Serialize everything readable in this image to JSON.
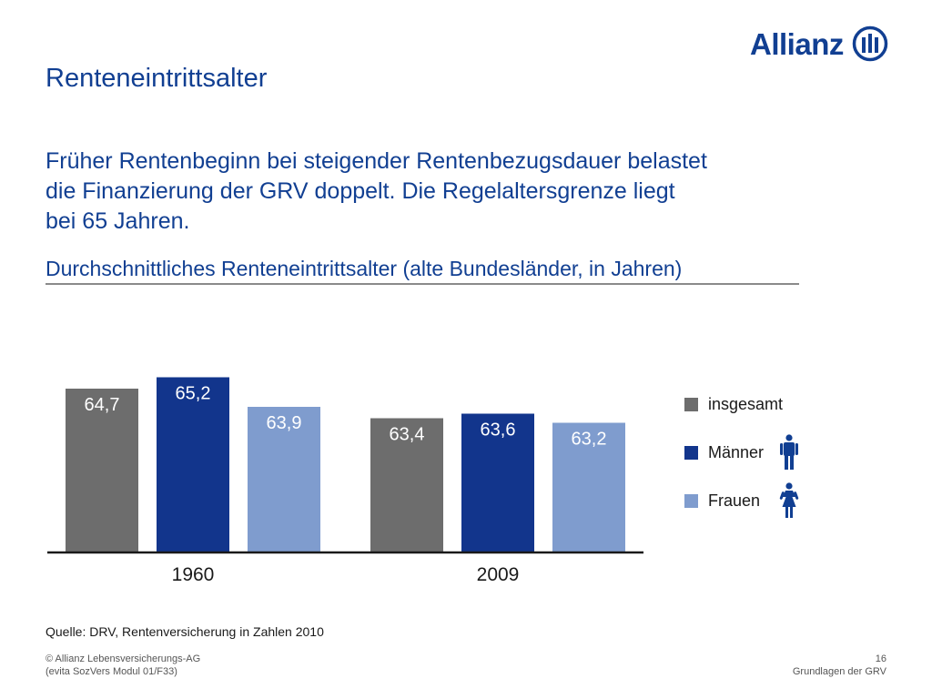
{
  "brand": {
    "name": "Allianz",
    "logo_icon": "allianz-eagle-mark-icon"
  },
  "page": {
    "title": "Renteneintrittsalter",
    "headline_lines": [
      "Früher Rentenbeginn bei steigender Rentenbezugsdauer belastet",
      "die Finanzierung der GRV doppelt. Die Regelaltersgrenze liegt",
      "bei 65 Jahren."
    ],
    "chart_title": "Durchschnittliches Renteneintrittsalter (alte Bundesländer, in Jahren)"
  },
  "chart_data": {
    "type": "bar",
    "title": "Durchschnittliches Renteneintrittsalter (alte Bundesländer, in Jahren)",
    "categories": [
      "1960",
      "2009"
    ],
    "series": [
      {
        "name": "insgesamt",
        "values": [
          64.7,
          63.4
        ],
        "labels": [
          "64,7",
          "63,4"
        ],
        "color": "#6d6d6d"
      },
      {
        "name": "Männer",
        "values": [
          65.2,
          63.6
        ],
        "labels": [
          "65,2",
          "63,6"
        ],
        "color": "#12358c"
      },
      {
        "name": "Frauen",
        "values": [
          63.9,
          63.2
        ],
        "labels": [
          "63,9",
          "63,2"
        ],
        "color": "#7f9cce"
      }
    ],
    "xlabel": "",
    "ylabel": "",
    "legend": "right",
    "grid": false
  },
  "legend_icons": [
    "",
    "man-figure-icon",
    "woman-figure-icon"
  ],
  "source": "Quelle: DRV, Rentenversicherung in Zahlen 2010",
  "footer": {
    "left_lines": [
      "© Allianz Lebensversicherungs-AG",
      "(evita SozVers Modul 01/F33)"
    ],
    "right_lines": [
      "16",
      "Grundlagen der GRV"
    ]
  },
  "colors": {
    "primary": "#113f92",
    "insgesamt": "#6d6d6d",
    "maenner": "#12358c",
    "frauen": "#7f9cce",
    "axis": "#1a1a1a"
  }
}
